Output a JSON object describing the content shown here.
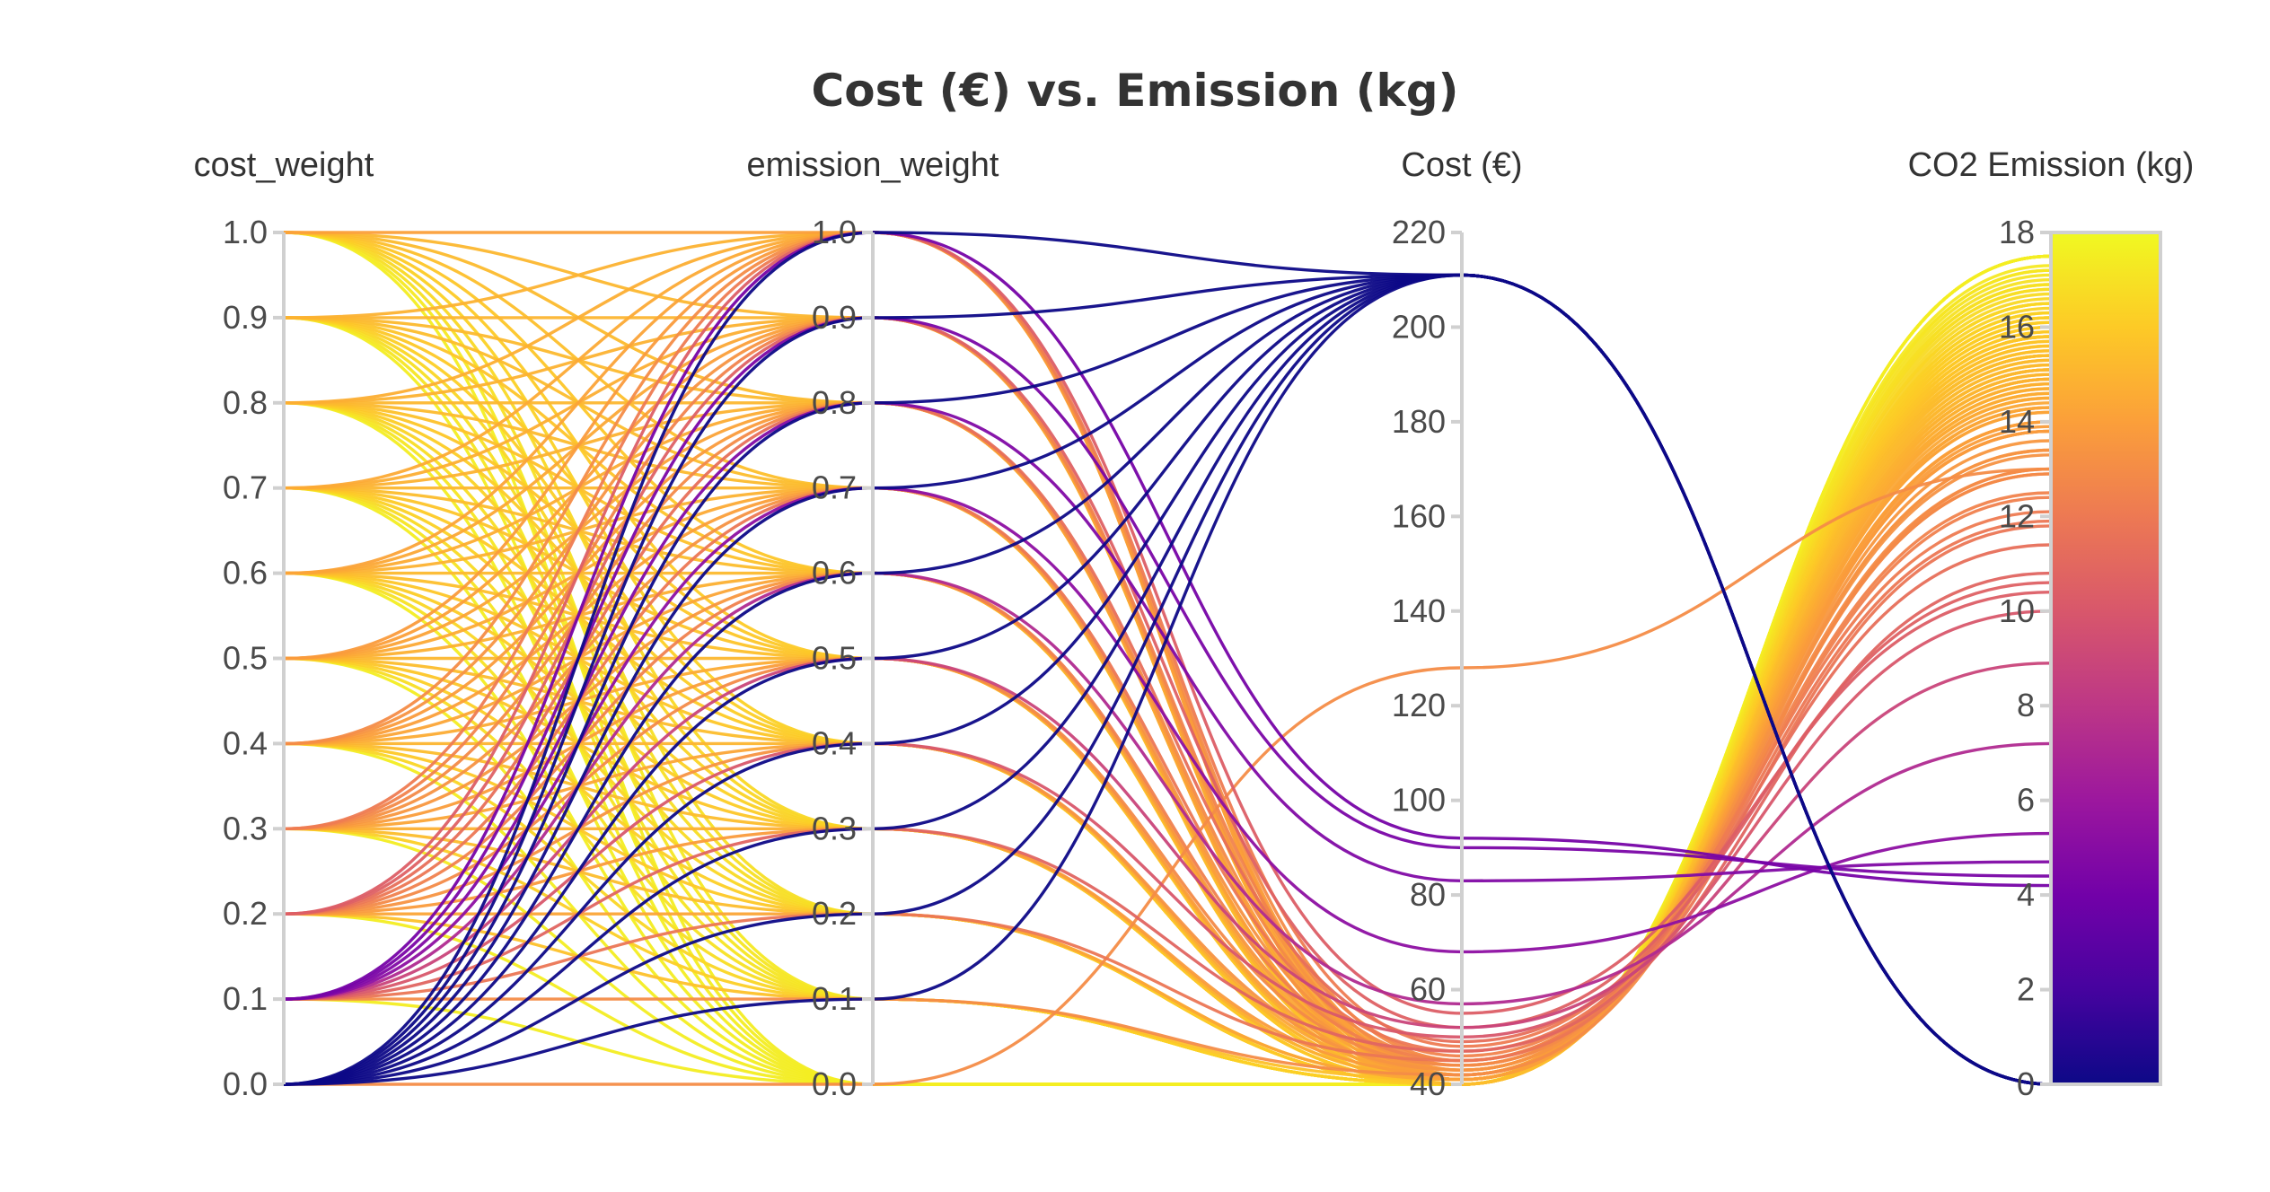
{
  "chart_data": {
    "type": "parallel_coordinates",
    "title": "Cost (€) vs. Emission (kg)",
    "dimensions": [
      {
        "label": "cost_weight",
        "range": [
          0,
          1
        ],
        "ticks": [
          "0.0",
          "0.1",
          "0.2",
          "0.3",
          "0.4",
          "0.5",
          "0.6",
          "0.7",
          "0.8",
          "0.9",
          "1.0"
        ],
        "tick_values": [
          0,
          0.1,
          0.2,
          0.3,
          0.4,
          0.5,
          0.6,
          0.7,
          0.8,
          0.9,
          1.0
        ]
      },
      {
        "label": "emission_weight",
        "range": [
          0,
          1
        ],
        "ticks": [
          "0.0",
          "0.1",
          "0.2",
          "0.3",
          "0.4",
          "0.5",
          "0.6",
          "0.7",
          "0.8",
          "0.9",
          "1.0"
        ],
        "tick_values": [
          0,
          0.1,
          0.2,
          0.3,
          0.4,
          0.5,
          0.6,
          0.7,
          0.8,
          0.9,
          1.0
        ]
      },
      {
        "label": "Cost (€)",
        "range": [
          40,
          220
        ],
        "ticks": [
          "40",
          "60",
          "80",
          "100",
          "120",
          "140",
          "160",
          "180",
          "200",
          "220"
        ],
        "tick_values": [
          40,
          60,
          80,
          100,
          120,
          140,
          160,
          180,
          200,
          220
        ]
      },
      {
        "label": "CO2 Emission (kg)",
        "range": [
          0,
          18
        ],
        "ticks": [
          "0",
          "2",
          "4",
          "6",
          "8",
          "10",
          "12",
          "14",
          "16",
          "18"
        ],
        "tick_values": [
          0,
          2,
          4,
          6,
          8,
          10,
          12,
          14,
          16,
          18
        ]
      }
    ],
    "colorscale": {
      "name": "Plasma",
      "colors": [
        "#0d0887",
        "#46039f",
        "#7201a8",
        "#9c179e",
        "#bd3786",
        "#d8576b",
        "#ed7953",
        "#fb9f3a",
        "#fdca26",
        "#f0f921"
      ],
      "color_dimension": "CO2 Emission (kg)",
      "range": [
        0,
        18
      ],
      "ticks": [
        "0",
        "2",
        "4",
        "6",
        "8",
        "10",
        "12",
        "14",
        "16",
        "18"
      ],
      "tick_values": [
        0,
        2,
        4,
        6,
        8,
        10,
        12,
        14,
        16,
        18
      ]
    },
    "lines": [
      [
        0.0,
        1.0,
        211,
        0.0
      ],
      [
        0.0,
        0.9,
        211,
        0.0
      ],
      [
        0.0,
        0.8,
        211,
        0.0
      ],
      [
        0.0,
        0.7,
        211,
        0.0
      ],
      [
        0.0,
        0.6,
        211,
        0.0
      ],
      [
        0.0,
        0.5,
        211,
        0.0
      ],
      [
        0.0,
        0.4,
        211,
        0.0
      ],
      [
        0.0,
        0.3,
        211,
        0.0
      ],
      [
        0.0,
        0.2,
        211,
        0.0
      ],
      [
        0.0,
        0.1,
        211,
        0.0
      ],
      [
        0.0,
        0.0,
        128,
        13.0
      ],
      [
        0.1,
        1.0,
        92,
        4.2
      ],
      [
        0.1,
        0.9,
        90,
        4.4
      ],
      [
        0.1,
        0.8,
        83,
        4.7
      ],
      [
        0.1,
        0.7,
        68,
        5.3
      ],
      [
        0.1,
        0.6,
        57,
        7.2
      ],
      [
        0.1,
        0.5,
        52,
        8.9
      ],
      [
        0.1,
        0.4,
        50,
        10.0
      ],
      [
        0.1,
        0.3,
        47,
        10.8
      ],
      [
        0.1,
        0.2,
        45,
        11.8
      ],
      [
        0.1,
        0.1,
        42,
        13.0
      ],
      [
        0.1,
        0.0,
        40,
        17.5
      ],
      [
        0.2,
        1.0,
        55,
        10.4
      ],
      [
        0.2,
        0.9,
        52,
        10.6
      ],
      [
        0.2,
        0.8,
        49,
        11.4
      ],
      [
        0.2,
        0.7,
        47,
        11.9
      ],
      [
        0.2,
        0.6,
        45,
        12.4
      ],
      [
        0.2,
        0.5,
        44,
        12.9
      ],
      [
        0.2,
        0.4,
        43,
        13.4
      ],
      [
        0.2,
        0.3,
        42,
        13.8
      ],
      [
        0.2,
        0.2,
        41,
        14.3
      ],
      [
        0.2,
        0.1,
        41,
        15.6
      ],
      [
        0.2,
        0.0,
        40,
        17.5
      ],
      [
        0.3,
        1.0,
        48,
        12.1
      ],
      [
        0.3,
        0.9,
        46,
        12.5
      ],
      [
        0.3,
        0.8,
        45,
        12.9
      ],
      [
        0.3,
        0.7,
        44,
        13.3
      ],
      [
        0.3,
        0.6,
        43,
        13.6
      ],
      [
        0.3,
        0.5,
        42,
        13.9
      ],
      [
        0.3,
        0.4,
        42,
        14.3
      ],
      [
        0.3,
        0.3,
        41,
        14.8
      ],
      [
        0.3,
        0.2,
        41,
        15.4
      ],
      [
        0.3,
        0.1,
        40,
        16.2
      ],
      [
        0.3,
        0.0,
        40,
        17.5
      ],
      [
        0.4,
        1.0,
        45,
        13.0
      ],
      [
        0.4,
        0.9,
        44,
        13.4
      ],
      [
        0.4,
        0.8,
        43,
        13.8
      ],
      [
        0.4,
        0.7,
        42,
        14.0
      ],
      [
        0.4,
        0.6,
        42,
        14.3
      ],
      [
        0.4,
        0.5,
        41,
        14.6
      ],
      [
        0.4,
        0.4,
        41,
        15.0
      ],
      [
        0.4,
        0.3,
        41,
        15.4
      ],
      [
        0.4,
        0.2,
        40,
        15.9
      ],
      [
        0.4,
        0.1,
        40,
        16.5
      ],
      [
        0.4,
        0.0,
        40,
        17.5
      ],
      [
        0.5,
        1.0,
        43,
        13.8
      ],
      [
        0.5,
        0.9,
        43,
        14.0
      ],
      [
        0.5,
        0.8,
        42,
        14.2
      ],
      [
        0.5,
        0.7,
        42,
        14.5
      ],
      [
        0.5,
        0.6,
        41,
        14.8
      ],
      [
        0.5,
        0.5,
        41,
        15.1
      ],
      [
        0.5,
        0.4,
        41,
        15.4
      ],
      [
        0.5,
        0.3,
        40,
        15.8
      ],
      [
        0.5,
        0.2,
        40,
        16.2
      ],
      [
        0.5,
        0.1,
        40,
        16.8
      ],
      [
        0.5,
        0.0,
        40,
        17.5
      ],
      [
        0.6,
        1.0,
        42,
        14.2
      ],
      [
        0.6,
        0.9,
        42,
        14.4
      ],
      [
        0.6,
        0.8,
        41,
        14.6
      ],
      [
        0.6,
        0.7,
        41,
        14.9
      ],
      [
        0.6,
        0.6,
        41,
        15.2
      ],
      [
        0.6,
        0.5,
        41,
        15.5
      ],
      [
        0.6,
        0.4,
        40,
        15.8
      ],
      [
        0.6,
        0.3,
        40,
        16.1
      ],
      [
        0.6,
        0.2,
        40,
        16.5
      ],
      [
        0.6,
        0.1,
        40,
        17.0
      ],
      [
        0.6,
        0.0,
        40,
        17.5
      ],
      [
        0.7,
        1.0,
        42,
        14.5
      ],
      [
        0.7,
        0.9,
        41,
        14.7
      ],
      [
        0.7,
        0.8,
        41,
        14.9
      ],
      [
        0.7,
        0.7,
        41,
        15.1
      ],
      [
        0.7,
        0.6,
        41,
        15.4
      ],
      [
        0.7,
        0.5,
        40,
        15.7
      ],
      [
        0.7,
        0.4,
        40,
        16.0
      ],
      [
        0.7,
        0.3,
        40,
        16.3
      ],
      [
        0.7,
        0.2,
        40,
        16.7
      ],
      [
        0.7,
        0.1,
        40,
        17.1
      ],
      [
        0.7,
        0.0,
        40,
        17.5
      ],
      [
        0.8,
        1.0,
        41,
        14.7
      ],
      [
        0.8,
        0.9,
        41,
        14.9
      ],
      [
        0.8,
        0.8,
        41,
        15.1
      ],
      [
        0.8,
        0.7,
        41,
        15.3
      ],
      [
        0.8,
        0.6,
        40,
        15.6
      ],
      [
        0.8,
        0.5,
        40,
        15.8
      ],
      [
        0.8,
        0.4,
        40,
        16.1
      ],
      [
        0.8,
        0.3,
        40,
        16.4
      ],
      [
        0.8,
        0.2,
        40,
        16.8
      ],
      [
        0.8,
        0.1,
        40,
        17.2
      ],
      [
        0.8,
        0.0,
        40,
        17.5
      ],
      [
        0.9,
        1.0,
        41,
        14.9
      ],
      [
        0.9,
        0.9,
        41,
        15.0
      ],
      [
        0.9,
        0.8,
        41,
        15.2
      ],
      [
        0.9,
        0.7,
        40,
        15.4
      ],
      [
        0.9,
        0.6,
        40,
        15.7
      ],
      [
        0.9,
        0.5,
        40,
        15.9
      ],
      [
        0.9,
        0.4,
        40,
        16.2
      ],
      [
        0.9,
        0.3,
        40,
        16.5
      ],
      [
        0.9,
        0.2,
        40,
        16.9
      ],
      [
        0.9,
        0.1,
        40,
        17.2
      ],
      [
        0.9,
        0.0,
        40,
        17.5
      ],
      [
        1.0,
        1.0,
        41,
        14.0
      ],
      [
        1.0,
        0.9,
        41,
        15.1
      ],
      [
        1.0,
        0.8,
        41,
        15.3
      ],
      [
        1.0,
        0.7,
        40,
        15.5
      ],
      [
        1.0,
        0.6,
        40,
        15.8
      ],
      [
        1.0,
        0.5,
        40,
        16.0
      ],
      [
        1.0,
        0.4,
        40,
        16.3
      ],
      [
        1.0,
        0.3,
        40,
        16.6
      ],
      [
        1.0,
        0.2,
        40,
        16.9
      ],
      [
        1.0,
        0.1,
        40,
        17.3
      ],
      [
        1.0,
        0.0,
        40,
        17.5
      ]
    ]
  }
}
